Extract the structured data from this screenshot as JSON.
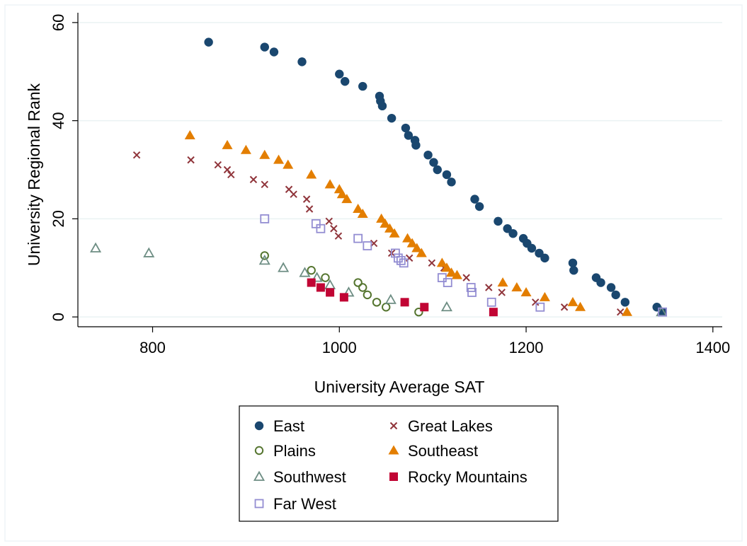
{
  "chart_data": {
    "type": "scatter",
    "title": "",
    "xlabel": "University Average SAT",
    "ylabel": "University Regional Rank",
    "xlim": [
      720,
      1410
    ],
    "ylim": [
      -2,
      62
    ],
    "xticks": [
      800,
      1000,
      1200,
      1400
    ],
    "yticks": [
      0,
      20,
      40,
      60
    ],
    "grid": "horizontal",
    "legend_position": "bottom",
    "series": [
      {
        "name": "East",
        "marker": "filled-circle",
        "color": "#1a476f",
        "x": [
          860,
          920,
          930,
          960,
          1000,
          1006,
          1025,
          1043,
          1044,
          1046,
          1056,
          1071,
          1074,
          1081,
          1082,
          1095,
          1101,
          1105,
          1115,
          1120,
          1145,
          1150,
          1170,
          1180,
          1186,
          1197,
          1201,
          1206,
          1214,
          1220,
          1250,
          1251,
          1275,
          1280,
          1291,
          1296,
          1306,
          1340,
          1346
        ],
        "y": [
          56,
          55,
          54,
          52,
          49.5,
          48,
          47,
          45,
          44,
          43,
          40.5,
          38.5,
          37,
          36,
          35,
          33,
          31.5,
          30,
          29,
          27.5,
          24,
          22.5,
          19.5,
          18,
          17,
          16,
          15,
          14,
          13,
          12,
          11,
          9.5,
          8,
          7,
          6,
          4.5,
          3,
          2,
          1
        ]
      },
      {
        "name": "Great Lakes",
        "marker": "x",
        "color": "#90353b",
        "x": [
          783,
          841,
          870,
          880,
          884,
          908,
          920,
          946,
          951,
          965,
          968,
          989,
          994,
          999,
          1037,
          1056,
          1075,
          1099,
          1112,
          1136,
          1160,
          1174,
          1210,
          1241,
          1301
        ],
        "y": [
          33,
          32,
          31,
          30,
          29,
          28,
          27,
          26,
          25,
          24,
          22,
          19.5,
          18,
          16.5,
          15,
          13,
          12,
          11,
          10,
          8,
          6,
          5,
          3,
          2,
          1
        ]
      },
      {
        "name": "Plains",
        "marker": "hollow-circle",
        "color": "#55752f",
        "x": [
          920,
          970,
          985,
          1020,
          1025,
          1030,
          1040,
          1050,
          1085
        ],
        "y": [
          12.5,
          9.5,
          8,
          7,
          6,
          4.5,
          3,
          2,
          1
        ]
      },
      {
        "name": "Southeast",
        "marker": "filled-triangle",
        "color": "#e37e00",
        "x": [
          840,
          880,
          900,
          920,
          935,
          945,
          970,
          990,
          1000,
          1003,
          1008,
          1020,
          1025,
          1045,
          1049,
          1054,
          1059,
          1073,
          1078,
          1083,
          1088,
          1110,
          1115,
          1120,
          1126,
          1175,
          1190,
          1200,
          1220,
          1250,
          1258,
          1308
        ],
        "y": [
          37,
          35,
          34,
          33,
          32,
          31,
          29,
          27,
          26,
          25,
          24,
          22,
          21,
          20,
          19,
          18,
          17,
          16,
          15,
          14,
          13,
          11,
          10,
          9,
          8.5,
          7,
          6,
          5,
          4,
          3,
          2,
          1
        ]
      },
      {
        "name": "Southwest",
        "marker": "hollow-triangle",
        "color": "#6e8e84",
        "x": [
          739,
          796,
          920,
          940,
          963,
          976,
          990,
          1010,
          1055,
          1115,
          1345
        ],
        "y": [
          14,
          13,
          11.5,
          10,
          9,
          8,
          6.5,
          5,
          3.5,
          2,
          1
        ]
      },
      {
        "name": "Rocky Mountains",
        "marker": "filled-square",
        "color": "#c10534",
        "x": [
          970,
          980,
          990,
          1005,
          1070,
          1091,
          1165
        ],
        "y": [
          7,
          6,
          5,
          4,
          3,
          2,
          1
        ]
      },
      {
        "name": "Far West",
        "marker": "hollow-square",
        "color": "#938dd2",
        "x": [
          920,
          975,
          980,
          1020,
          1030,
          1060,
          1063,
          1066,
          1069,
          1110,
          1116,
          1141,
          1142,
          1163,
          1215,
          1346
        ],
        "y": [
          20,
          19,
          18,
          16,
          14.5,
          13,
          12,
          11.5,
          11,
          8,
          7,
          6,
          5,
          3,
          2,
          1
        ]
      }
    ]
  }
}
